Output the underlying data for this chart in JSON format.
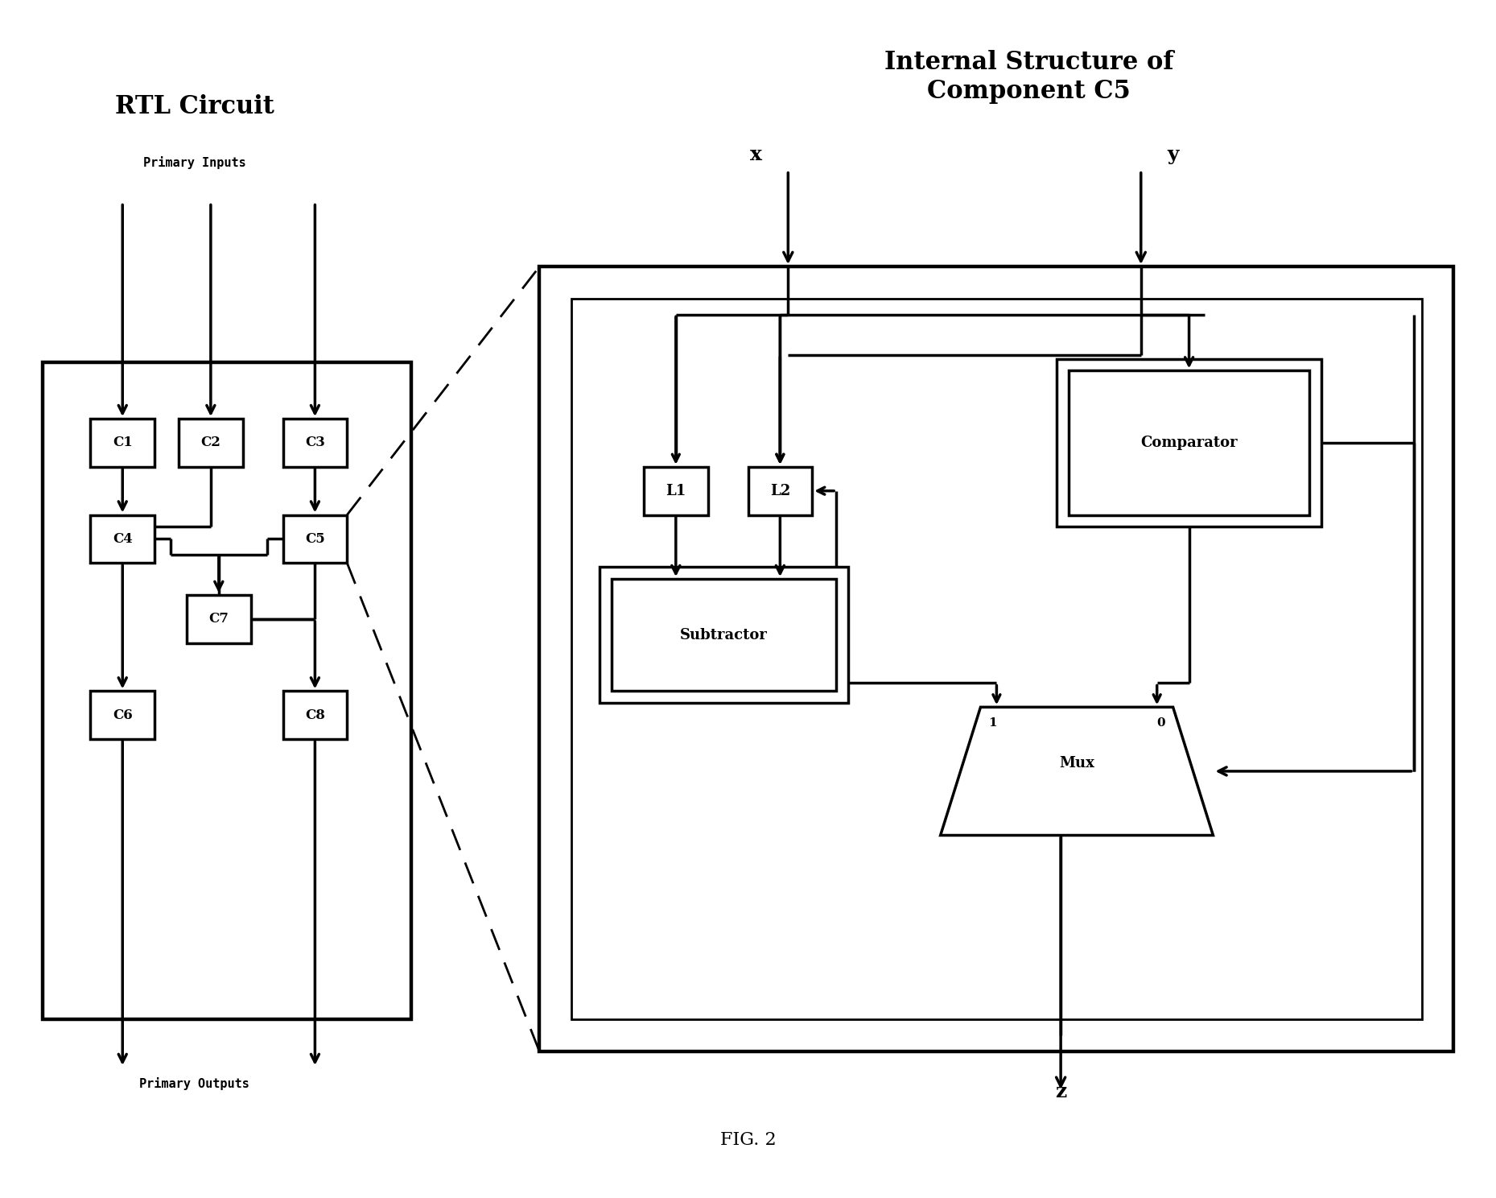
{
  "fig_width": 18.59,
  "fig_height": 14.88,
  "bg_color": "#ffffff",
  "title_rtl": "RTL Circuit",
  "title_internal": "Internal Structure of\nComponent C5",
  "fig_label": "FIG. 2",
  "primary_inputs": "Primary Inputs",
  "primary_outputs": "Primary Outputs"
}
